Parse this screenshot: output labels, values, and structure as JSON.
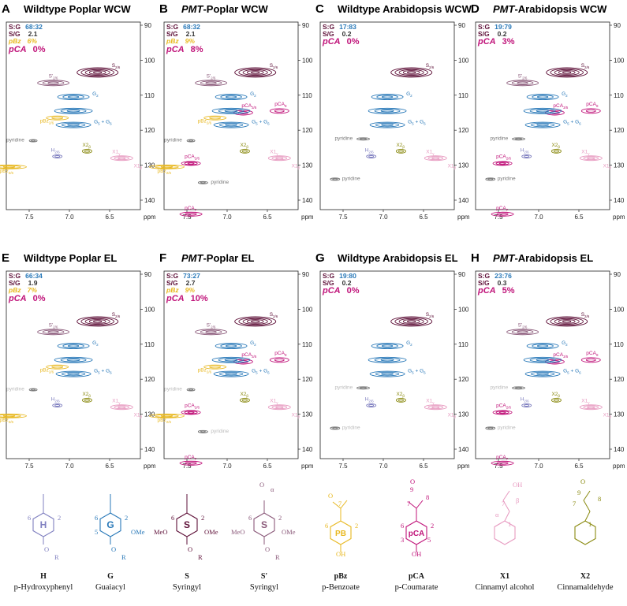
{
  "axes": {
    "yticks": [
      90,
      100,
      110,
      120,
      130,
      140
    ],
    "xticks": [
      "7.5",
      "7.0",
      "6.5"
    ],
    "unit": "ppm"
  },
  "panels": [
    {
      "letter": "A",
      "title": "Wildtype Poplar WCW",
      "sg_label": "S:G",
      "sg": "68:32",
      "ratio_label": "S/G",
      "ratio": "2.1",
      "pbz_label": "pBz",
      "pbz": "6%",
      "pca_label": "pCA",
      "pca": "0%",
      "peaks": [
        [
          "S",
          "2/6"
        ],
        [
          "S'",
          "2/6"
        ],
        [
          "G",
          "2"
        ],
        [
          "G",
          "5",
          " + G",
          "6"
        ],
        [
          "pBz",
          "2/6"
        ],
        [
          "pyridine"
        ],
        [
          "H",
          "2/6"
        ],
        [
          "X2",
          "β"
        ],
        [
          "X1",
          "γ"
        ],
        [
          "X1",
          "β"
        ],
        [
          "pBz",
          "2/6"
        ]
      ]
    },
    {
      "letter": "B",
      "title_italic": "PMT",
      "title": "-Poplar WCW",
      "sg_label": "S:G",
      "sg": "68:32",
      "ratio_label": "S/G",
      "ratio": "2.1",
      "pbz_label": "pBz",
      "pbz": "9%",
      "pca_label": "pCA",
      "pca": "8%",
      "peaks": [
        [
          "S",
          "2/6"
        ],
        [
          "S'",
          "2/6"
        ],
        [
          "G",
          "2"
        ],
        [
          "pCA",
          "3/5"
        ],
        [
          "pCA",
          "8"
        ],
        [
          "G",
          "5",
          " + G",
          "6"
        ],
        [
          "pBz",
          "2/6"
        ],
        [
          "pyridine"
        ],
        [
          "X2",
          "β"
        ],
        [
          "X1",
          "γ"
        ],
        [
          "X1",
          "β"
        ],
        [
          "pCA",
          "2/6"
        ],
        [
          "pBz",
          "2/6"
        ],
        [
          "pyridine"
        ],
        [
          "pCA",
          "7"
        ]
      ]
    },
    {
      "letter": "C",
      "title": "Wildtype Arabidopsis WCW",
      "sg_label": "S:G",
      "sg": "17:83",
      "ratio_label": "S/G",
      "ratio": "0.2",
      "pca_label": "pCA",
      "pca": "0%",
      "peaks": [
        [
          "S",
          "2/6"
        ],
        [
          "G",
          "2"
        ],
        [
          "G",
          "5",
          " + G",
          "6"
        ],
        [
          "pyridine"
        ],
        [
          "H",
          "2/6"
        ],
        [
          "X2",
          "β"
        ],
        [
          "X1",
          "γ"
        ],
        [
          "X1",
          "β"
        ],
        [
          "pyridine"
        ]
      ]
    },
    {
      "letter": "D",
      "title_italic": "PMT",
      "title": "-Arabidopsis WCW",
      "sg_label": "S:G",
      "sg": "19:79",
      "ratio_label": "S/G",
      "ratio": "0.2",
      "pca_label": "pCA",
      "pca": "3%",
      "peaks": [
        [
          "S",
          "2/6"
        ],
        [
          "S'",
          "2/6"
        ],
        [
          "G",
          "2"
        ],
        [
          "pCA",
          "8"
        ],
        [
          "pCA",
          "3/5"
        ],
        [
          "G",
          "5",
          " + G",
          "6"
        ],
        [
          "pyridine"
        ],
        [
          "H",
          "2/6"
        ],
        [
          "X2",
          "β"
        ],
        [
          "X1",
          "γ"
        ],
        [
          "X1",
          "β"
        ],
        [
          "pCA",
          "2/6"
        ],
        [
          "pyridine"
        ],
        [
          "pCA",
          "7"
        ]
      ]
    },
    {
      "letter": "E",
      "title": "Wildtype Poplar EL",
      "sg_label": "S:G",
      "sg": "66:34",
      "ratio_label": "S/G",
      "ratio": "1.9",
      "pbz_label": "pBz",
      "pbz": "7%",
      "pca_label": "pCA",
      "pca": "0%",
      "peaks": [
        [
          "S",
          "2/6"
        ],
        [
          "S'",
          "2/6"
        ],
        [
          "G",
          "2"
        ],
        [
          "G",
          "5",
          " + G",
          "6"
        ],
        [
          "pBz",
          "2/6"
        ],
        [
          "pyridine"
        ],
        [
          "H",
          "2/6"
        ],
        [
          "X2",
          "β"
        ],
        [
          "X1",
          "γ"
        ],
        [
          "X1",
          "β"
        ],
        [
          "pBz",
          "2/6"
        ]
      ]
    },
    {
      "letter": "F",
      "title_italic": "PMT",
      "title": "-Poplar EL",
      "sg_label": "S:G",
      "sg": "73:27",
      "ratio_label": "S/G",
      "ratio": "2.7",
      "pbz_label": "pBz",
      "pbz": "9%",
      "pca_label": "pCA",
      "pca": "10%",
      "peaks": [
        [
          "S",
          "2/6"
        ],
        [
          "S'",
          "2/6"
        ],
        [
          "G",
          "2"
        ],
        [
          "pCA",
          "3/5"
        ],
        [
          "pCA",
          "8"
        ],
        [
          "G",
          "5",
          " + G",
          "6"
        ],
        [
          "pBz",
          "2/6"
        ],
        [
          "pyridine"
        ],
        [
          "X2",
          "β"
        ],
        [
          "X1",
          "γ"
        ],
        [
          "X1",
          "β"
        ],
        [
          "pCA",
          "2/6"
        ],
        [
          "pBz",
          "2/6"
        ],
        [
          "pyridine"
        ],
        [
          "pCA",
          "7"
        ]
      ]
    },
    {
      "letter": "G",
      "title": "Wildtype Arabidopsis EL",
      "sg_label": "S:G",
      "sg": "19:80",
      "ratio_label": "S/G",
      "ratio": "0.2",
      "pca_label": "pCA",
      "pca": "0%",
      "peaks": [
        [
          "S",
          "2/6"
        ],
        [
          "G",
          "2"
        ],
        [
          "G",
          "5",
          " + G",
          "6"
        ],
        [
          "pyridine"
        ],
        [
          "H",
          "2/6"
        ],
        [
          "X2",
          "β"
        ],
        [
          "X1",
          "γ"
        ],
        [
          "X1",
          "β"
        ],
        [
          "pyridine"
        ]
      ]
    },
    {
      "letter": "H",
      "title_italic": "PMT",
      "title": "-Arabidopsis EL",
      "sg_label": "S:G",
      "sg": "23:76",
      "ratio_label": "S/G",
      "ratio": "0.3",
      "pca_label": "pCA",
      "pca": "5%",
      "peaks": [
        [
          "S",
          "2/6"
        ],
        [
          "S'",
          "2/6"
        ],
        [
          "G",
          "2"
        ],
        [
          "pCA",
          "8"
        ],
        [
          "pCA",
          "3/5"
        ],
        [
          "G",
          "5",
          " + G",
          "6"
        ],
        [
          "pyridine"
        ],
        [
          "H",
          "2/6"
        ],
        [
          "X2",
          "β"
        ],
        [
          "X1",
          "γ"
        ],
        [
          "X1",
          "β"
        ],
        [
          "pCA",
          "2/6"
        ],
        [
          "pyridine"
        ],
        [
          "pCA",
          "7"
        ]
      ]
    }
  ],
  "structures": [
    {
      "name": "H",
      "desc": "p-Hydroxyphenyl",
      "ring": "H",
      "atoms": [
        "6",
        "2",
        "O",
        "R"
      ]
    },
    {
      "name": "G",
      "desc": "Guaiacyl",
      "ring": "G",
      "atoms": [
        "6",
        "2",
        "5",
        "OMe",
        "O",
        "R"
      ]
    },
    {
      "name": "S",
      "desc": "Syringyl",
      "ring": "S",
      "atoms": [
        "6",
        "2",
        "MeO",
        "OMe",
        "O",
        "R"
      ]
    },
    {
      "name": "S'",
      "desc": "Syringyl",
      "ring": "S",
      "atoms": [
        "α",
        "O",
        "6",
        "2",
        "MeO",
        "OMe",
        "O",
        "R"
      ]
    },
    {
      "name": "pBz",
      "desc": "p-Benzoate",
      "ring": "PB",
      "atoms": [
        "7",
        "O",
        "6",
        "2",
        "OH"
      ]
    },
    {
      "name": "pCA",
      "desc": "p-Coumarate",
      "ring": "pCA",
      "atoms": [
        "9",
        "O",
        "7",
        "8",
        "6",
        "2",
        "3",
        "5",
        "OH"
      ]
    },
    {
      "name": "X1",
      "desc": "Cinnamyl alcohol",
      "atoms": [
        "OH",
        "7",
        "α",
        "β",
        "1"
      ]
    },
    {
      "name": "X2",
      "desc": "Cinnamaldehyde",
      "atoms": [
        "O",
        "9",
        "7",
        "8",
        "1"
      ]
    }
  ]
}
